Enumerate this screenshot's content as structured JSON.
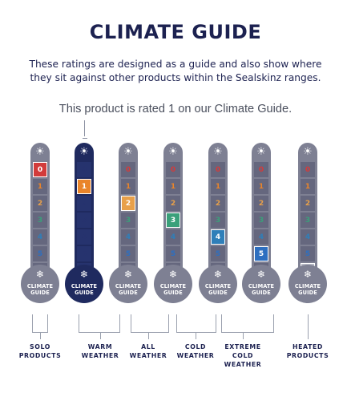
{
  "title": "CLIMATE GUIDE",
  "subtitle_line1": "These ratings are designed as a guide and also show where",
  "subtitle_line2": "they sit against other products within the Sealskinz ranges.",
  "rating_text": "This product is rated 1 on our Climate Guide.",
  "colors": {
    "navy": "#1c2150",
    "gauge_grey": "#7e8093",
    "gauge_active": "#1f2a5f"
  },
  "scale_labels": [
    "0",
    "1",
    "2",
    "3",
    "4",
    "5",
    "5+"
  ],
  "scale_colors": {
    "0": "#d23b3b",
    "1": "#e9842a",
    "2": "#e8a04a",
    "3": "#3aa07a",
    "4": "#2f7fb9",
    "5": "#2e6fc0",
    "5+": "#b9bbc7"
  },
  "sun_icon": "☀",
  "snow_icon": "❄",
  "bulb_line1": "CLIMATE",
  "bulb_line2": "GUIDE",
  "gauges": [
    {
      "highlight": "0",
      "active": false
    },
    {
      "highlight": "1",
      "active": true
    },
    {
      "highlight": "2",
      "active": false
    },
    {
      "highlight": "3",
      "active": false
    },
    {
      "highlight": "4",
      "active": false
    },
    {
      "highlight": "5",
      "active": false
    },
    {
      "highlight": "5+",
      "active": false
    }
  ],
  "categories": [
    {
      "line1": "SOLO",
      "line2": "PRODUCTS",
      "line3": ""
    },
    {
      "line1": "WARM",
      "line2": "WEATHER",
      "line3": ""
    },
    {
      "line1": "ALL",
      "line2": "WEATHER",
      "line3": ""
    },
    {
      "line1": "COLD",
      "line2": "WEATHER",
      "line3": ""
    },
    {
      "line1": "EXTREME",
      "line2": "COLD",
      "line3": "WEATHER"
    },
    {
      "line1": "HEATED",
      "line2": "PRODUCTS",
      "line3": ""
    }
  ]
}
